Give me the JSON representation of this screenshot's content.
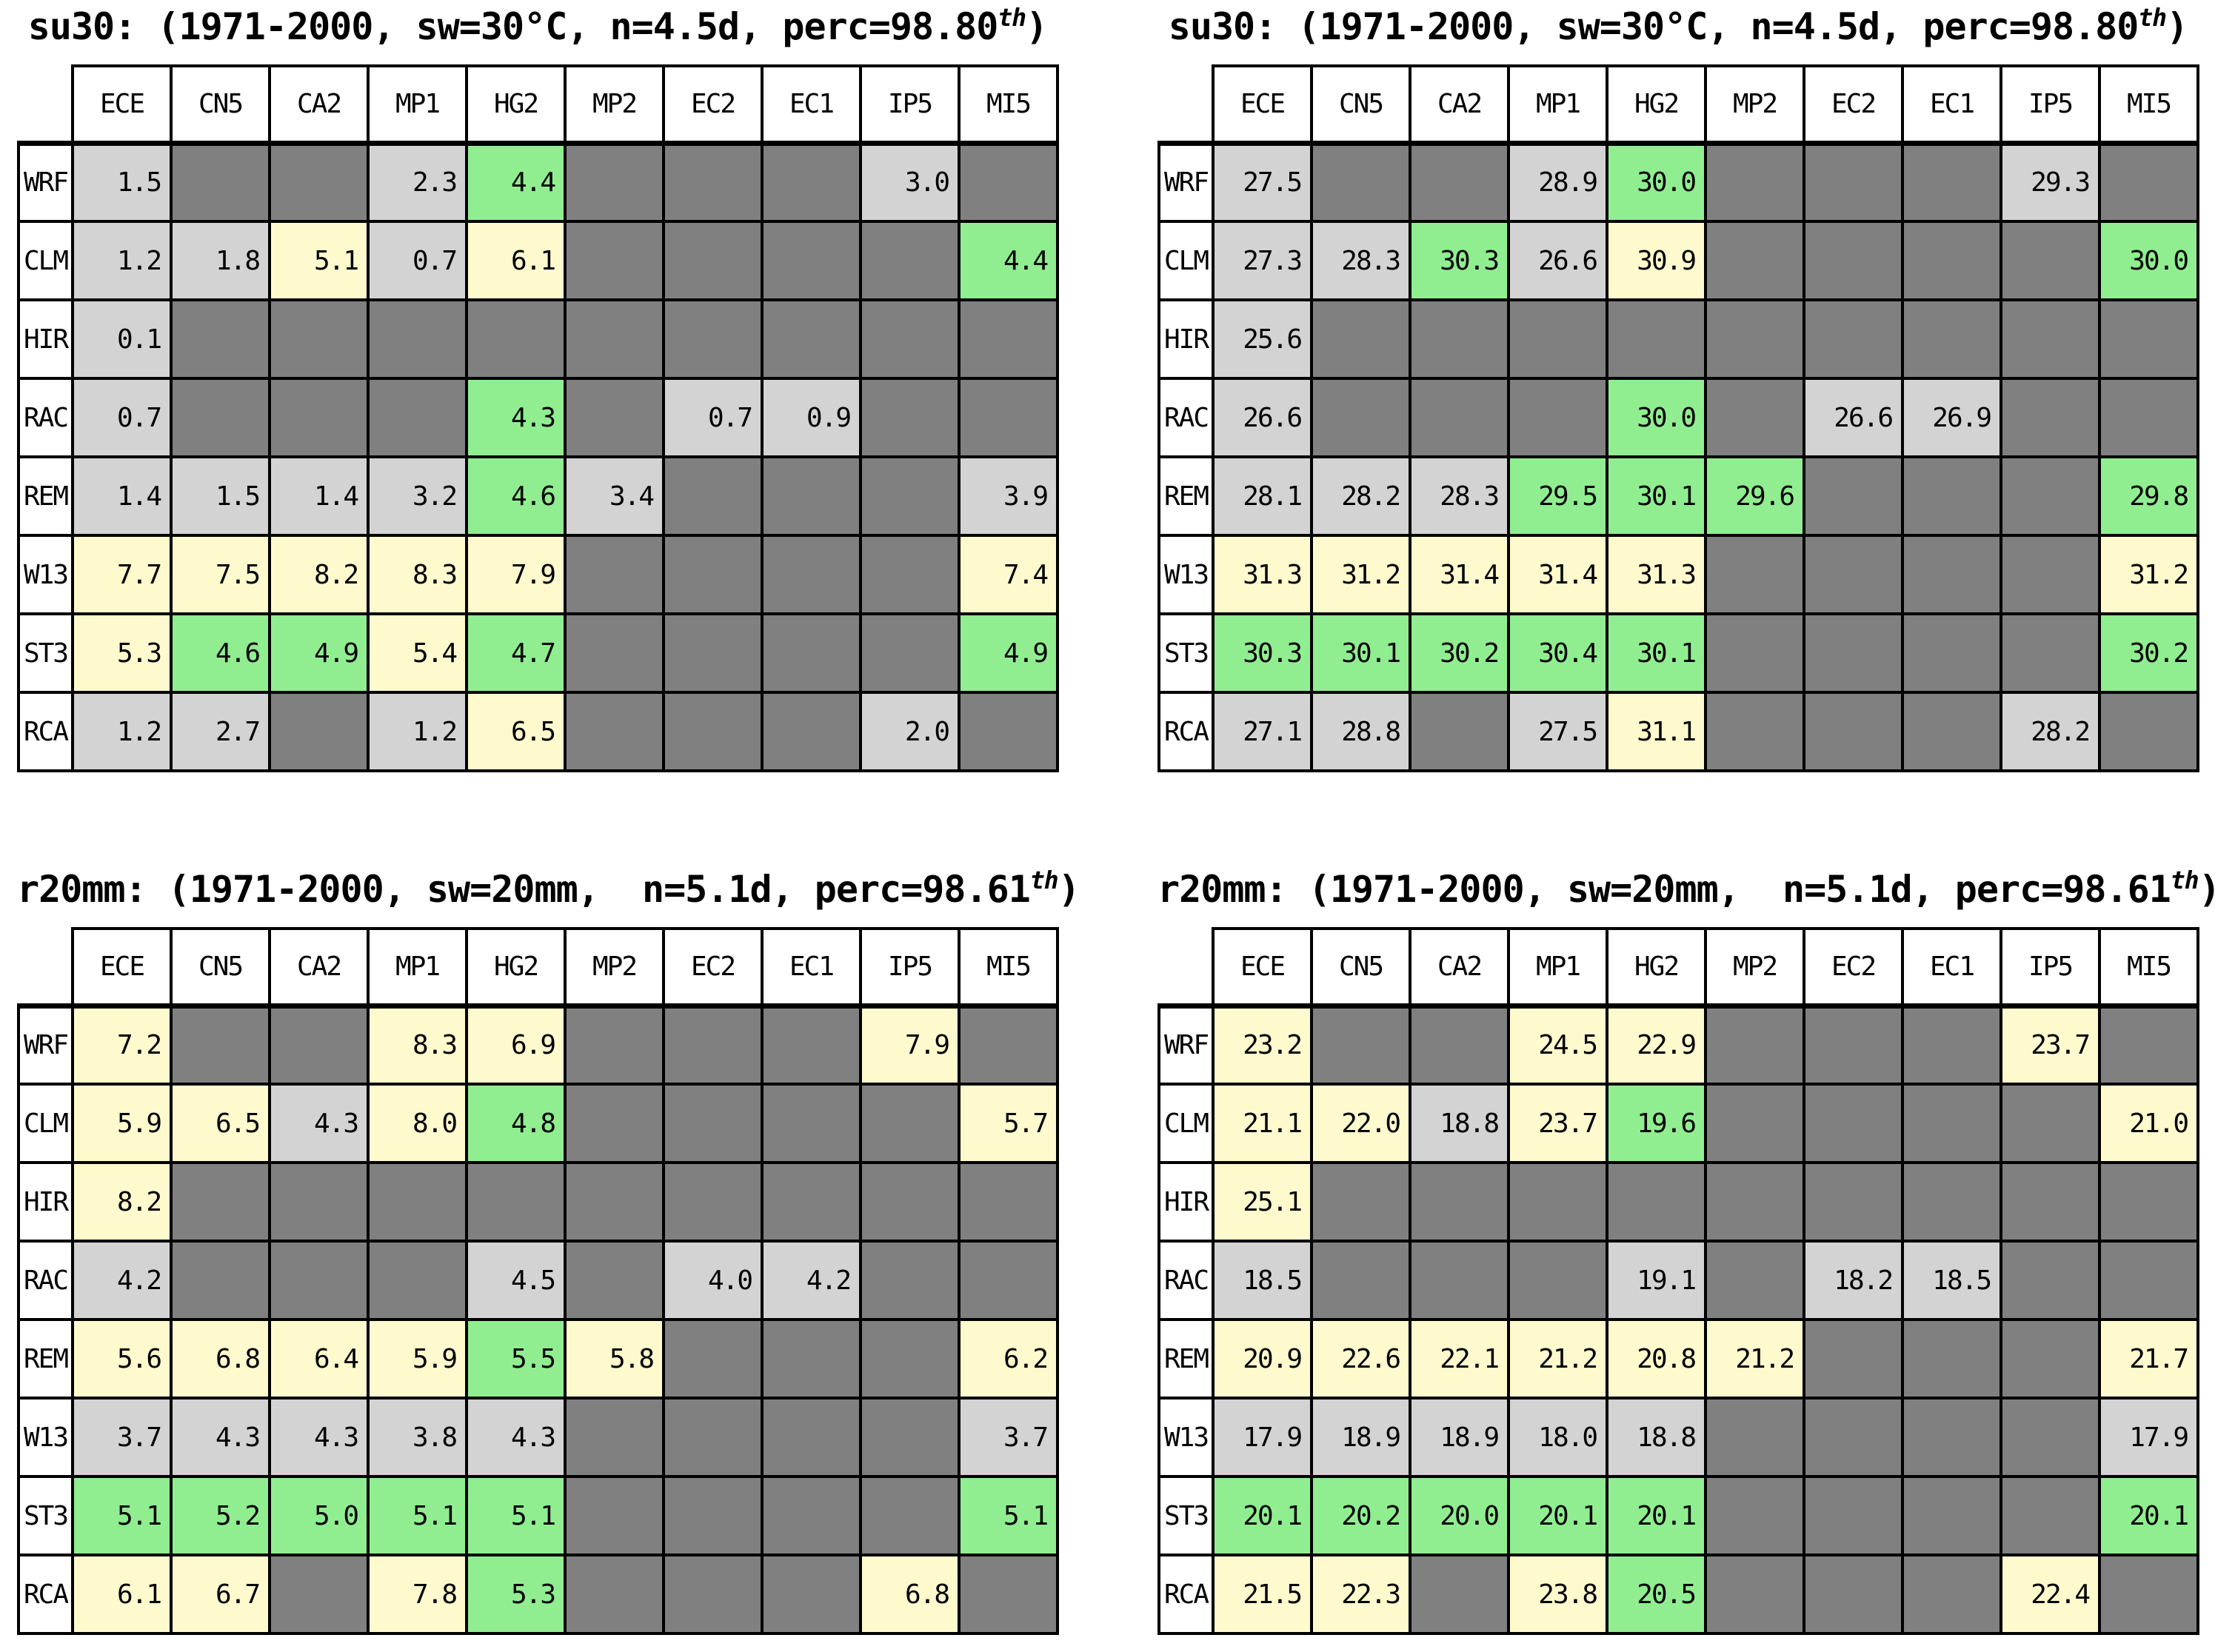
{
  "figure": {
    "background": "#ffffff",
    "description_visible_panels": 4
  },
  "colors": {
    "border": "#000000",
    "text": "#000000",
    "codes": {
      "x": "#808080",
      "l": "#d3d3d3",
      "y": "#fffacd",
      "g": "#90ee90"
    },
    "palette_names": {
      "x": "grey-missing",
      "l": "lightgrey",
      "y": "lightyellow",
      "g": "lightgreen"
    }
  },
  "columns": [
    "ECE",
    "CN5",
    "CA2",
    "MP1",
    "HG2",
    "MP2",
    "EC2",
    "EC1",
    "IP5",
    "MI5"
  ],
  "row_labels": [
    "WRF",
    "CLM",
    "HIR",
    "RAC",
    "REM",
    "W13",
    "ST3",
    "RCA"
  ],
  "chart_data": [
    {
      "type": "heatmap",
      "position": "top-left",
      "title": {
        "prefix": "su30: (1971-2000, sw=30°C, n=4.5d, perc=98.80",
        "sup": "th",
        "suffix": ")"
      },
      "title_plain": "su30: (1971-2000, sw=30°C, n=4.5d, perc=98.80th)",
      "columns": [
        "ECE",
        "CN5",
        "CA2",
        "MP1",
        "HG2",
        "MP2",
        "EC2",
        "EC1",
        "IP5",
        "MI5"
      ],
      "rows": [
        "WRF",
        "CLM",
        "HIR",
        "RAC",
        "REM",
        "W13",
        "ST3",
        "RCA"
      ],
      "values": [
        [
          1.5,
          null,
          null,
          2.3,
          4.4,
          null,
          null,
          null,
          3.0,
          null
        ],
        [
          1.2,
          1.8,
          5.1,
          0.7,
          6.1,
          null,
          null,
          null,
          null,
          4.4
        ],
        [
          0.1,
          null,
          null,
          null,
          null,
          null,
          null,
          null,
          null,
          null
        ],
        [
          0.7,
          null,
          null,
          null,
          4.3,
          null,
          0.7,
          0.9,
          null,
          null
        ],
        [
          1.4,
          1.5,
          1.4,
          3.2,
          4.6,
          3.4,
          null,
          null,
          null,
          3.9
        ],
        [
          7.7,
          7.5,
          8.2,
          8.3,
          7.9,
          null,
          null,
          null,
          null,
          7.4
        ],
        [
          5.3,
          4.6,
          4.9,
          5.4,
          4.7,
          null,
          null,
          null,
          null,
          4.9
        ],
        [
          1.2,
          2.7,
          null,
          1.2,
          6.5,
          null,
          null,
          null,
          2.0,
          null
        ]
      ],
      "cell_labels": [
        [
          "1.5",
          "",
          "",
          "2.3",
          "4.4",
          "",
          "",
          "",
          "3.0",
          ""
        ],
        [
          "1.2",
          "1.8",
          "5.1",
          "0.7",
          "6.1",
          "",
          "",
          "",
          "",
          "4.4"
        ],
        [
          "0.1",
          "",
          "",
          "",
          "",
          "",
          "",
          "",
          "",
          ""
        ],
        [
          "0.7",
          "",
          "",
          "",
          "4.3",
          "",
          "0.7",
          "0.9",
          "",
          ""
        ],
        [
          "1.4",
          "1.5",
          "1.4",
          "3.2",
          "4.6",
          "3.4",
          "",
          "",
          "",
          "3.9"
        ],
        [
          "7.7",
          "7.5",
          "8.2",
          "8.3",
          "7.9",
          "",
          "",
          "",
          "",
          "7.4"
        ],
        [
          "5.3",
          "4.6",
          "4.9",
          "5.4",
          "4.7",
          "",
          "",
          "",
          "",
          "4.9"
        ],
        [
          "1.2",
          "2.7",
          "",
          "1.2",
          "6.5",
          "",
          "",
          "",
          "2.0",
          ""
        ]
      ],
      "cell_colors": [
        "lxxlgxxxlx",
        "llylyxxxxg",
        "lxxxxxxxxx",
        "lxxxgxllxx",
        "llllglxxxl",
        "yyyyyxxxxy",
        "yggygxxxxg",
        "llxlyxxxlx"
      ]
    },
    {
      "type": "heatmap",
      "position": "top-right",
      "title": {
        "prefix": "su30: (1971-2000, sw=30°C, n=4.5d, perc=98.80",
        "sup": "th",
        "suffix": ")"
      },
      "title_plain": "su30: (1971-2000, sw=30°C, n=4.5d, perc=98.80th)",
      "columns": [
        "ECE",
        "CN5",
        "CA2",
        "MP1",
        "HG2",
        "MP2",
        "EC2",
        "EC1",
        "IP5",
        "MI5"
      ],
      "rows": [
        "WRF",
        "CLM",
        "HIR",
        "RAC",
        "REM",
        "W13",
        "ST3",
        "RCA"
      ],
      "values": [
        [
          27.5,
          null,
          null,
          28.9,
          30.0,
          null,
          null,
          null,
          29.3,
          null
        ],
        [
          27.3,
          28.3,
          30.3,
          26.6,
          30.9,
          null,
          null,
          null,
          null,
          30.0
        ],
        [
          25.6,
          null,
          null,
          null,
          null,
          null,
          null,
          null,
          null,
          null
        ],
        [
          26.6,
          null,
          null,
          null,
          30.0,
          null,
          26.6,
          26.9,
          null,
          null
        ],
        [
          28.1,
          28.2,
          28.3,
          29.5,
          30.1,
          29.6,
          null,
          null,
          null,
          29.8
        ],
        [
          31.3,
          31.2,
          31.4,
          31.4,
          31.3,
          null,
          null,
          null,
          null,
          31.2
        ],
        [
          30.3,
          30.1,
          30.2,
          30.4,
          30.1,
          null,
          null,
          null,
          null,
          30.2
        ],
        [
          27.1,
          28.8,
          null,
          27.5,
          31.1,
          null,
          null,
          null,
          28.2,
          null
        ]
      ],
      "cell_labels": [
        [
          "27.5",
          "",
          "",
          "28.9",
          "30.0",
          "",
          "",
          "",
          "29.3",
          ""
        ],
        [
          "27.3",
          "28.3",
          "30.3",
          "26.6",
          "30.9",
          "",
          "",
          "",
          "",
          "30.0"
        ],
        [
          "25.6",
          "",
          "",
          "",
          "",
          "",
          "",
          "",
          "",
          ""
        ],
        [
          "26.6",
          "",
          "",
          "",
          "30.0",
          "",
          "26.6",
          "26.9",
          "",
          ""
        ],
        [
          "28.1",
          "28.2",
          "28.3",
          "29.5",
          "30.1",
          "29.6",
          "",
          "",
          "",
          "29.8"
        ],
        [
          "31.3",
          "31.2",
          "31.4",
          "31.4",
          "31.3",
          "",
          "",
          "",
          "",
          "31.2"
        ],
        [
          "30.3",
          "30.1",
          "30.2",
          "30.4",
          "30.1",
          "",
          "",
          "",
          "",
          "30.2"
        ],
        [
          "27.1",
          "28.8",
          "",
          "27.5",
          "31.1",
          "",
          "",
          "",
          "28.2",
          ""
        ]
      ],
      "cell_colors": [
        "lxxlgxxxlx",
        "llglyxxxxg",
        "lxxxxxxxxx",
        "lxxxgxllxx",
        "lllgggxxxg",
        "yyyyyxxxxy",
        "gggggxxxxg",
        "llxlyxxxlx"
      ]
    },
    {
      "type": "heatmap",
      "position": "bottom-left",
      "title": {
        "prefix": "r20mm: (1971-2000, sw=20mm,  n=5.1d, perc=98.61",
        "sup": "th",
        "suffix": ")"
      },
      "title_plain": "r20mm: (1971-2000, sw=20mm,  n=5.1d, perc=98.61th)",
      "columns": [
        "ECE",
        "CN5",
        "CA2",
        "MP1",
        "HG2",
        "MP2",
        "EC2",
        "EC1",
        "IP5",
        "MI5"
      ],
      "rows": [
        "WRF",
        "CLM",
        "HIR",
        "RAC",
        "REM",
        "W13",
        "ST3",
        "RCA"
      ],
      "values": [
        [
          7.2,
          null,
          null,
          8.3,
          6.9,
          null,
          null,
          null,
          7.9,
          null
        ],
        [
          5.9,
          6.5,
          4.3,
          8.0,
          4.8,
          null,
          null,
          null,
          null,
          5.7
        ],
        [
          8.2,
          null,
          null,
          null,
          null,
          null,
          null,
          null,
          null,
          null
        ],
        [
          4.2,
          null,
          null,
          null,
          4.5,
          null,
          4.0,
          4.2,
          null,
          null
        ],
        [
          5.6,
          6.8,
          6.4,
          5.9,
          5.5,
          5.8,
          null,
          null,
          null,
          6.2
        ],
        [
          3.7,
          4.3,
          4.3,
          3.8,
          4.3,
          null,
          null,
          null,
          null,
          3.7
        ],
        [
          5.1,
          5.2,
          5.0,
          5.1,
          5.1,
          null,
          null,
          null,
          null,
          5.1
        ],
        [
          6.1,
          6.7,
          null,
          7.8,
          5.3,
          null,
          null,
          null,
          6.8,
          null
        ]
      ],
      "cell_labels": [
        [
          "7.2",
          "",
          "",
          "8.3",
          "6.9",
          "",
          "",
          "",
          "7.9",
          ""
        ],
        [
          "5.9",
          "6.5",
          "4.3",
          "8.0",
          "4.8",
          "",
          "",
          "",
          "",
          "5.7"
        ],
        [
          "8.2",
          "",
          "",
          "",
          "",
          "",
          "",
          "",
          "",
          ""
        ],
        [
          "4.2",
          "",
          "",
          "",
          "4.5",
          "",
          "4.0",
          "4.2",
          "",
          ""
        ],
        [
          "5.6",
          "6.8",
          "6.4",
          "5.9",
          "5.5",
          "5.8",
          "",
          "",
          "",
          "6.2"
        ],
        [
          "3.7",
          "4.3",
          "4.3",
          "3.8",
          "4.3",
          "",
          "",
          "",
          "",
          "3.7"
        ],
        [
          "5.1",
          "5.2",
          "5.0",
          "5.1",
          "5.1",
          "",
          "",
          "",
          "",
          "5.1"
        ],
        [
          "6.1",
          "6.7",
          "",
          "7.8",
          "5.3",
          "",
          "",
          "",
          "6.8",
          ""
        ]
      ],
      "cell_colors": [
        "yxxyyxxxyx",
        "yylygxxxxy",
        "yxxxxxxxxx",
        "lxxxlxllxx",
        "yyyygyxxxy",
        "lllllxxxxl",
        "gggggxxxxg",
        "yyxygxxxyx"
      ]
    },
    {
      "type": "heatmap",
      "position": "bottom-right",
      "title": {
        "prefix": "r20mm: (1971-2000, sw=20mm,  n=5.1d, perc=98.61",
        "sup": "th",
        "suffix": ")"
      },
      "title_plain": "r20mm: (1971-2000, sw=20mm,  n=5.1d, perc=98.61th)",
      "columns": [
        "ECE",
        "CN5",
        "CA2",
        "MP1",
        "HG2",
        "MP2",
        "EC2",
        "EC1",
        "IP5",
        "MI5"
      ],
      "rows": [
        "WRF",
        "CLM",
        "HIR",
        "RAC",
        "REM",
        "W13",
        "ST3",
        "RCA"
      ],
      "values": [
        [
          23.2,
          null,
          null,
          24.5,
          22.9,
          null,
          null,
          null,
          23.7,
          null
        ],
        [
          21.1,
          22.0,
          18.8,
          23.7,
          19.6,
          null,
          null,
          null,
          null,
          21.0
        ],
        [
          25.1,
          null,
          null,
          null,
          null,
          null,
          null,
          null,
          null,
          null
        ],
        [
          18.5,
          null,
          null,
          null,
          19.1,
          null,
          18.2,
          18.5,
          null,
          null
        ],
        [
          20.9,
          22.6,
          22.1,
          21.2,
          20.8,
          21.2,
          null,
          null,
          null,
          21.7
        ],
        [
          17.9,
          18.9,
          18.9,
          18.0,
          18.8,
          null,
          null,
          null,
          null,
          17.9
        ],
        [
          20.1,
          20.2,
          20.0,
          20.1,
          20.1,
          null,
          null,
          null,
          null,
          20.1
        ],
        [
          21.5,
          22.3,
          null,
          23.8,
          20.5,
          null,
          null,
          null,
          22.4,
          null
        ]
      ],
      "cell_labels": [
        [
          "23.2",
          "",
          "",
          "24.5",
          "22.9",
          "",
          "",
          "",
          "23.7",
          ""
        ],
        [
          "21.1",
          "22.0",
          "18.8",
          "23.7",
          "19.6",
          "",
          "",
          "",
          "",
          "21.0"
        ],
        [
          "25.1",
          "",
          "",
          "",
          "",
          "",
          "",
          "",
          "",
          ""
        ],
        [
          "18.5",
          "",
          "",
          "",
          "19.1",
          "",
          "18.2",
          "18.5",
          "",
          ""
        ],
        [
          "20.9",
          "22.6",
          "22.1",
          "21.2",
          "20.8",
          "21.2",
          "",
          "",
          "",
          "21.7"
        ],
        [
          "17.9",
          "18.9",
          "18.9",
          "18.0",
          "18.8",
          "",
          "",
          "",
          "",
          "17.9"
        ],
        [
          "20.1",
          "20.2",
          "20.0",
          "20.1",
          "20.1",
          "",
          "",
          "",
          "",
          "20.1"
        ],
        [
          "21.5",
          "22.3",
          "",
          "23.8",
          "20.5",
          "",
          "",
          "",
          "22.4",
          ""
        ]
      ],
      "cell_colors": [
        "yxxyyxxxyx",
        "yylygxxxxy",
        "yxxxxxxxxx",
        "lxxxlxllxx",
        "yyyyyyxxxy",
        "lllllxxxxl",
        "gggggxxxxg",
        "yyxygxxxyx"
      ]
    }
  ]
}
